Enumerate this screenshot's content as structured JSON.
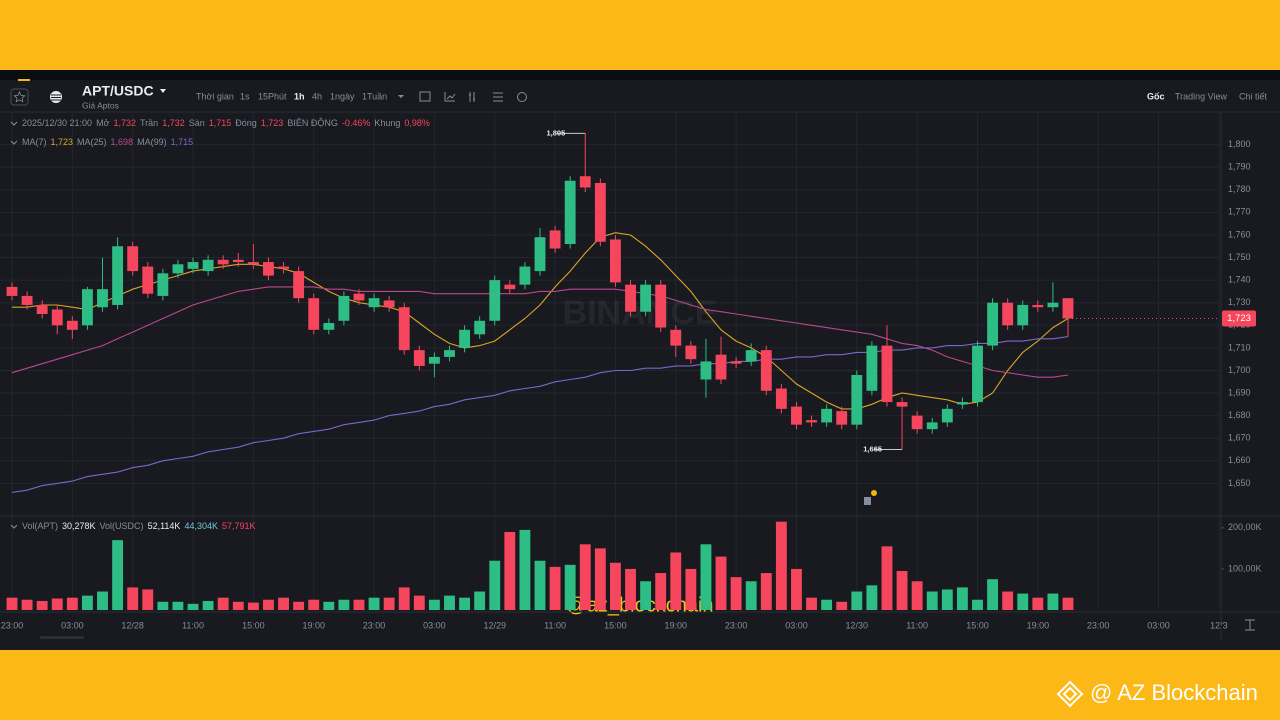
{
  "header": {
    "symbol": "APT/USDC",
    "subtitle": "Giá Aptos",
    "intervals": [
      "Thời gian",
      "1s",
      "15Phút",
      "1h",
      "4h",
      "1ngày",
      "1Tuần"
    ],
    "views": [
      "Gốc",
      "Trading View",
      "Chi tiết"
    ]
  },
  "ohlc_row": [
    "2025/12/30 21:00",
    "Mở",
    "1,732",
    "Trần",
    "1,732",
    "Sàn",
    "1,715",
    "Đóng",
    "1,723",
    "BIÊN ĐỘNG",
    "-0.46%",
    "Khung",
    "0,98%"
  ],
  "ma_row": [
    "MA(7)",
    "1,723",
    "MA(25)",
    "1,698",
    "MA(99)",
    "1,715"
  ],
  "vol_row": [
    "Vol(APT)",
    "30,278K",
    "Vol(USDC)",
    "52,114K",
    "44,304K",
    "57,791K"
  ],
  "watermark": "BINANCE",
  "credit": "@az_blockchain",
  "footer": "@ AZ Blockchain",
  "chart_data": {
    "type": "candlestick",
    "open": [
      1737,
      1733,
      1729,
      1727,
      1722,
      1720,
      1728,
      1729,
      1755,
      1746,
      1733,
      1743,
      1745,
      1744,
      1749,
      1749,
      1748,
      1748,
      1746,
      1744,
      1732,
      1718,
      1722,
      1734,
      1728,
      1731,
      1728,
      1709,
      1703,
      1706,
      1710,
      1716,
      1722,
      1738,
      1738,
      1744,
      1762,
      1756,
      1786,
      1783,
      1758,
      1738,
      1726,
      1738,
      1718,
      1711,
      1696,
      1707,
      1704,
      1704,
      1709,
      1692,
      1684,
      1678,
      1677,
      1682,
      1676,
      1691,
      1711,
      1686,
      1680,
      1674,
      1677,
      1685,
      1686,
      1711,
      1730,
      1720,
      1729,
      1728,
      1732
    ],
    "high": [
      1739,
      1735,
      1731,
      1729,
      1724,
      1737,
      1750,
      1759,
      1757,
      1748,
      1745,
      1749,
      1750,
      1751,
      1751,
      1752,
      1756,
      1750,
      1748,
      1746,
      1734,
      1723,
      1735,
      1736,
      1734,
      1733,
      1730,
      1711,
      1708,
      1711,
      1720,
      1724,
      1742,
      1740,
      1748,
      1763,
      1764,
      1786,
      1805,
      1785,
      1760,
      1740,
      1740,
      1740,
      1720,
      1713,
      1714,
      1715,
      1706,
      1712,
      1711,
      1694,
      1686,
      1680,
      1685,
      1684,
      1700,
      1713,
      1720,
      1688,
      1682,
      1679,
      1685,
      1688,
      1713,
      1732,
      1732,
      1731,
      1731,
      1739,
      1732
    ],
    "low": [
      1731,
      1727,
      1723,
      1716,
      1714,
      1718,
      1726,
      1727,
      1742,
      1732,
      1731,
      1741,
      1743,
      1742,
      1745,
      1746,
      1745,
      1740,
      1743,
      1730,
      1716,
      1716,
      1720,
      1729,
      1726,
      1726,
      1707,
      1700,
      1697,
      1704,
      1708,
      1714,
      1720,
      1734,
      1736,
      1742,
      1752,
      1754,
      1779,
      1755,
      1737,
      1724,
      1724,
      1717,
      1706,
      1703,
      1688,
      1694,
      1701,
      1702,
      1689,
      1681,
      1674,
      1675,
      1675,
      1674,
      1674,
      1689,
      1684,
      1665,
      1672,
      1672,
      1675,
      1683,
      1684,
      1709,
      1718,
      1718,
      1726,
      1726,
      1715
    ],
    "close": [
      1733,
      1729,
      1725,
      1720,
      1718,
      1736,
      1736,
      1755,
      1744,
      1734,
      1743,
      1747,
      1748,
      1749,
      1747,
      1748,
      1747,
      1742,
      1745,
      1732,
      1718,
      1721,
      1733,
      1731,
      1732,
      1728,
      1709,
      1702,
      1706,
      1709,
      1718,
      1722,
      1740,
      1736,
      1746,
      1759,
      1754,
      1784,
      1781,
      1757,
      1739,
      1726,
      1738,
      1719,
      1711,
      1705,
      1704,
      1696,
      1703,
      1709,
      1691,
      1683,
      1676,
      1677,
      1683,
      1676,
      1698,
      1711,
      1686,
      1684,
      1674,
      1677,
      1683,
      1686,
      1711,
      1730,
      1720,
      1729,
      1728,
      1730,
      1723
    ],
    "up_color": "#2ebd85",
    "down_color": "#f6465d",
    "ma": [
      {
        "name": "MA(7)",
        "color": "#d9a526",
        "values": [
          1728,
          1728,
          1729,
          1729,
          1728,
          1727,
          1730,
          1733,
          1736,
          1738,
          1740,
          1742,
          1744,
          1745,
          1746,
          1747,
          1747,
          1746,
          1745,
          1743,
          1739,
          1735,
          1732,
          1730,
          1729,
          1728,
          1726,
          1721,
          1716,
          1712,
          1710,
          1711,
          1713,
          1718,
          1723,
          1729,
          1737,
          1744,
          1752,
          1759,
          1761,
          1760,
          1755,
          1749,
          1742,
          1735,
          1726,
          1718,
          1713,
          1710,
          1706,
          1700,
          1694,
          1690,
          1686,
          1683,
          1683,
          1685,
          1688,
          1690,
          1689,
          1688,
          1687,
          1685,
          1686,
          1690,
          1700,
          1708,
          1713,
          1719,
          1723
        ]
      },
      {
        "name": "MA(25)",
        "color": "#b9488f",
        "values": [
          1699,
          1701,
          1703,
          1705,
          1707,
          1709,
          1711,
          1714,
          1717,
          1720,
          1723,
          1726,
          1729,
          1731,
          1733,
          1735,
          1736,
          1737,
          1737,
          1737,
          1737,
          1736,
          1736,
          1735,
          1735,
          1735,
          1735,
          1735,
          1734,
          1734,
          1734,
          1734,
          1734,
          1734,
          1734,
          1735,
          1735,
          1736,
          1736,
          1736,
          1736,
          1735,
          1734,
          1733,
          1731,
          1729,
          1727,
          1726,
          1725,
          1724,
          1723,
          1722,
          1721,
          1720,
          1719,
          1718,
          1717,
          1716,
          1714,
          1712,
          1711,
          1709,
          1706,
          1704,
          1702,
          1700,
          1699,
          1698,
          1697,
          1697,
          1698
        ]
      },
      {
        "name": "MA(99)",
        "color": "#7b66c9",
        "values": [
          1646,
          1647,
          1649,
          1650,
          1651,
          1653,
          1654,
          1655,
          1657,
          1658,
          1660,
          1661,
          1662,
          1664,
          1665,
          1666,
          1668,
          1669,
          1670,
          1672,
          1673,
          1674,
          1676,
          1677,
          1678,
          1680,
          1681,
          1682,
          1684,
          1685,
          1687,
          1688,
          1689,
          1691,
          1692,
          1693,
          1695,
          1696,
          1697,
          1699,
          1700,
          1700,
          1701,
          1701,
          1702,
          1702,
          1703,
          1703,
          1704,
          1704,
          1705,
          1705,
          1706,
          1706,
          1707,
          1707,
          1708,
          1708,
          1709,
          1709,
          1710,
          1710,
          1711,
          1711,
          1712,
          1712,
          1713,
          1713,
          1714,
          1714,
          1715
        ]
      }
    ],
    "ylim": [
      1636,
      1814
    ],
    "yticks": [
      {
        "value": 1650,
        "label": "1,650"
      },
      {
        "value": 1660,
        "label": "1,660"
      },
      {
        "value": 1670,
        "label": "1,670"
      },
      {
        "value": 1680,
        "label": "1,680"
      },
      {
        "value": 1690,
        "label": "1,690"
      },
      {
        "value": 1700,
        "label": "1,700"
      },
      {
        "value": 1710,
        "label": "1,710"
      },
      {
        "value": 1720,
        "label": "1,720"
      },
      {
        "value": 1730,
        "label": "1,730"
      },
      {
        "value": 1740,
        "label": "1,740"
      },
      {
        "value": 1750,
        "label": "1,750"
      },
      {
        "value": 1760,
        "label": "1,760"
      },
      {
        "value": 1770,
        "label": "1,770"
      },
      {
        "value": 1780,
        "label": "1,780"
      },
      {
        "value": 1790,
        "label": "1,790"
      },
      {
        "value": 1800,
        "label": "1,800"
      }
    ],
    "last_price": {
      "value": 1723,
      "label": "1,723"
    },
    "max_marker": {
      "value": 1805,
      "label": "1,805"
    },
    "min_marker": {
      "value": 1665,
      "label": "1,665"
    },
    "volume": {
      "values": [
        30,
        25,
        22,
        28,
        30,
        35,
        45,
        170,
        55,
        50,
        20,
        20,
        15,
        22,
        30,
        20,
        18,
        25,
        30,
        20,
        25,
        20,
        25,
        25,
        30,
        30,
        55,
        35,
        25,
        35,
        30,
        45,
        120,
        190,
        195,
        120,
        105,
        110,
        160,
        150,
        115,
        100,
        70,
        90,
        140,
        100,
        160,
        130,
        80,
        70,
        90,
        215,
        100,
        30,
        25,
        20,
        45,
        60,
        155,
        95,
        70,
        45,
        50,
        55,
        25,
        75,
        45,
        40,
        30,
        40,
        30
      ],
      "vlim": [
        0,
        224
      ],
      "yticks": [
        {
          "value": 100,
          "label": "100,00K"
        },
        {
          "value": 200,
          "label": "200,00K"
        }
      ]
    },
    "time_labels": [
      "23:00",
      "03:00",
      "12/28",
      "11:00",
      "15:00",
      "19:00",
      "23:00",
      "03:00",
      "12/29",
      "11:00",
      "15:00",
      "19:00",
      "23:00",
      "03:00",
      "12/30",
      "11:00",
      "15:00",
      "19:00",
      "23:00",
      "03:00",
      "12/3"
    ]
  }
}
